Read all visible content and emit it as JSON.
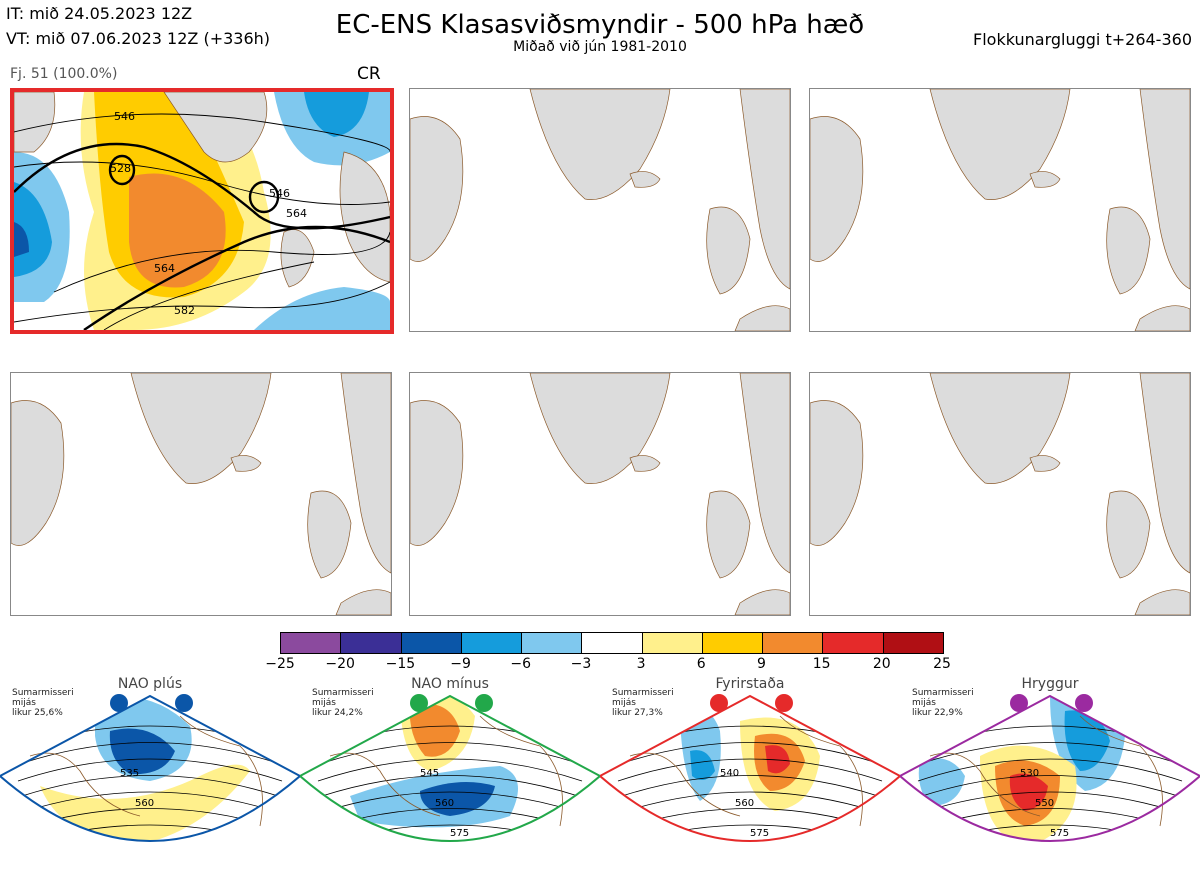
{
  "header": {
    "it": "IT: mið 24.05.2023 12Z",
    "vt": "VT: mið 07.06.2023 12Z  (+336h)",
    "title": "EC-ENS Klasasviðsmyndir - 500 hPa hæð",
    "subtitle": "Miðað við jún 1981-2010",
    "window": "Flokkunargluggi t+264-360"
  },
  "cluster": {
    "label": "Fj. 51 (100.0%)",
    "code": "CR",
    "contour_labels": [
      "546",
      "528",
      "546",
      "564",
      "564",
      "582"
    ]
  },
  "colorbar": {
    "colors": [
      "#8b4a9e",
      "#3b2f96",
      "#0b56a8",
      "#159cdc",
      "#7fc8ee",
      "#ffffff",
      "#fff08c",
      "#ffcc00",
      "#f28a2e",
      "#e52a2a",
      "#b00f14"
    ],
    "ticks": [
      "−25",
      "−20",
      "−15",
      "−9",
      "−6",
      "−3",
      "3",
      "6",
      "9",
      "15",
      "20",
      "25"
    ]
  },
  "regimes": [
    {
      "name": "NAO plús",
      "note": [
        "Sumarmisseri",
        "mijás",
        "likur 25,6%"
      ],
      "color": "#0b56a8",
      "labels": [
        "535",
        "560"
      ]
    },
    {
      "name": "NAO mínus",
      "note": [
        "Sumarmisseri",
        "mijás",
        "likur 24,2%"
      ],
      "color": "#22a84a",
      "labels": [
        "545",
        "560",
        "575"
      ]
    },
    {
      "name": "Fyrirstaða",
      "note": [
        "Sumarmisseri",
        "mijás",
        "likur 27,3%"
      ],
      "color": "#e52a2a",
      "labels": [
        "540",
        "560",
        "575"
      ]
    },
    {
      "name": "Hryggur",
      "note": [
        "Sumarmisseri",
        "mijás",
        "likur 22,9%"
      ],
      "color": "#9b2aa0",
      "labels": [
        "530",
        "550",
        "575"
      ]
    }
  ]
}
